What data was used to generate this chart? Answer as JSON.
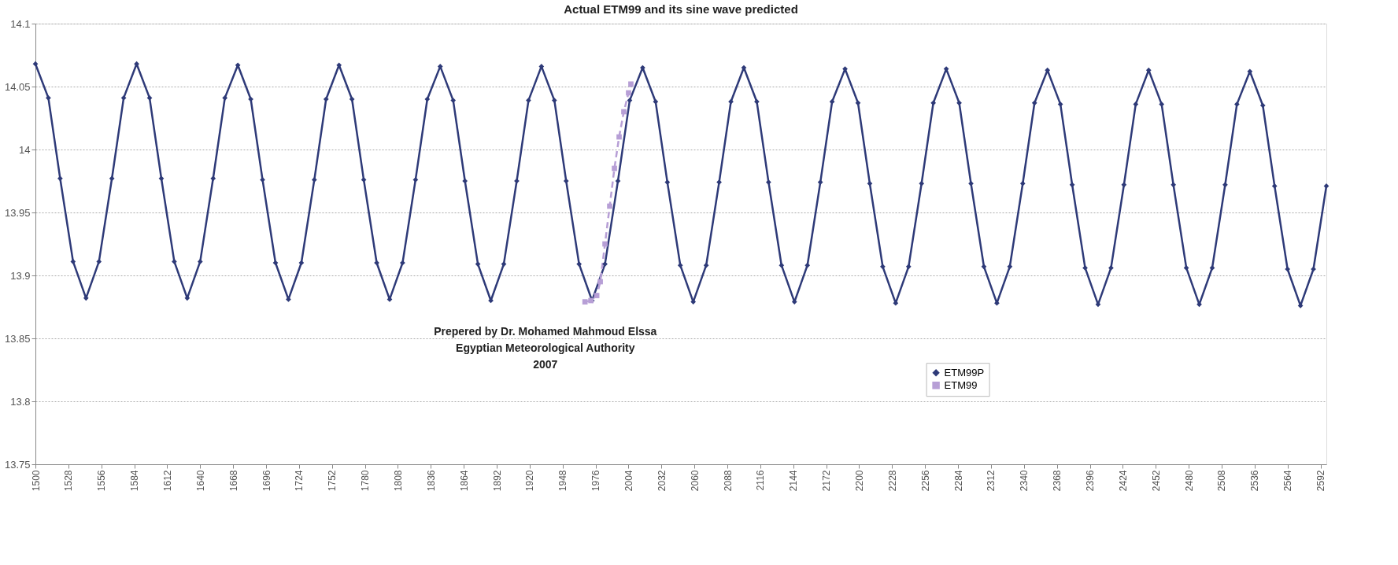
{
  "chart_data": {
    "type": "line",
    "title": "Actual ETM99 and its sine wave predicted",
    "annotations": [
      "Prepered by Dr. Mohamed Mahmoud Elssa",
      "Egyptian Meteorological Authority",
      "2007"
    ],
    "xlim": [
      1500,
      2597
    ],
    "xticks": [
      1500,
      1528,
      1556,
      1584,
      1612,
      1640,
      1668,
      1696,
      1724,
      1752,
      1780,
      1808,
      1836,
      1864,
      1892,
      1920,
      1948,
      1976,
      2004,
      2032,
      2060,
      2088,
      2116,
      2144,
      2172,
      2200,
      2228,
      2256,
      2284,
      2312,
      2340,
      2368,
      2396,
      2424,
      2452,
      2480,
      2508,
      2536,
      2564,
      2592
    ],
    "ylim": [
      13.75,
      14.1
    ],
    "yticks": [
      13.75,
      13.8,
      13.85,
      13.9,
      13.95,
      14,
      14.05,
      14.1
    ],
    "grid": "y",
    "legend": "bottom right",
    "series": [
      {
        "name": "ETM99P",
        "color": "#2e3a78",
        "marker": "diamond",
        "line_style": "solid",
        "x": [
          1500,
          1511,
          1521,
          1532,
          1543,
          1554,
          1565,
          1575,
          1586,
          1597,
          1607,
          1618,
          1629,
          1640,
          1651,
          1661,
          1672,
          1683,
          1693,
          1704,
          1715,
          1726,
          1737,
          1747,
          1758,
          1769,
          1779,
          1790,
          1801,
          1812,
          1823,
          1833,
          1844,
          1855,
          1865,
          1876,
          1887,
          1898,
          1909,
          1919,
          1930,
          1941,
          1951,
          1962,
          1973,
          1984,
          1995,
          2005,
          2016,
          2027,
          2037,
          2048,
          2059,
          2070,
          2081,
          2091,
          2102,
          2113,
          2123,
          2134,
          2145,
          2156,
          2167,
          2177,
          2188,
          2199,
          2209,
          2220,
          2231,
          2242,
          2253,
          2263,
          2274,
          2285,
          2295,
          2306,
          2317,
          2328,
          2339,
          2349,
          2360,
          2371,
          2381,
          2392,
          2403,
          2414,
          2425,
          2435,
          2446,
          2457,
          2467,
          2478,
          2489,
          2500,
          2511,
          2521,
          2532,
          2543,
          2553,
          2564,
          2575,
          2586,
          2597
        ],
        "values": [
          14.068,
          14.041,
          13.977,
          13.911,
          13.882,
          13.911,
          13.977,
          14.041,
          14.068,
          14.041,
          13.977,
          13.911,
          13.882,
          13.911,
          13.977,
          14.041,
          14.067,
          14.04,
          13.976,
          13.91,
          13.881,
          13.91,
          13.976,
          14.04,
          14.067,
          14.04,
          13.976,
          13.91,
          13.881,
          13.91,
          13.976,
          14.04,
          14.066,
          14.039,
          13.975,
          13.909,
          13.88,
          13.909,
          13.975,
          14.039,
          14.066,
          14.039,
          13.975,
          13.909,
          13.88,
          13.909,
          13.975,
          14.039,
          14.065,
          14.038,
          13.974,
          13.908,
          13.879,
          13.908,
          13.974,
          14.038,
          14.065,
          14.038,
          13.974,
          13.908,
          13.879,
          13.908,
          13.974,
          14.038,
          14.064,
          14.037,
          13.973,
          13.907,
          13.878,
          13.907,
          13.973,
          14.037,
          14.064,
          14.037,
          13.973,
          13.907,
          13.878,
          13.907,
          13.973,
          14.037,
          14.063,
          14.036,
          13.972,
          13.906,
          13.877,
          13.906,
          13.972,
          14.036,
          14.063,
          14.036,
          13.972,
          13.906,
          13.877,
          13.906,
          13.972,
          14.036,
          14.062,
          14.035,
          13.971,
          13.905,
          13.876,
          13.905,
          13.971
        ]
      },
      {
        "name": "ETM99",
        "color": "#b79fd6",
        "marker": "square",
        "line_style": "dashed",
        "x": [
          1967,
          1972,
          1977,
          1980,
          1984,
          1988,
          1992,
          1996,
          2000,
          2004,
          2006
        ],
        "values": [
          13.879,
          13.88,
          13.884,
          13.895,
          13.925,
          13.955,
          13.985,
          14.01,
          14.03,
          14.045,
          14.052
        ]
      }
    ]
  }
}
